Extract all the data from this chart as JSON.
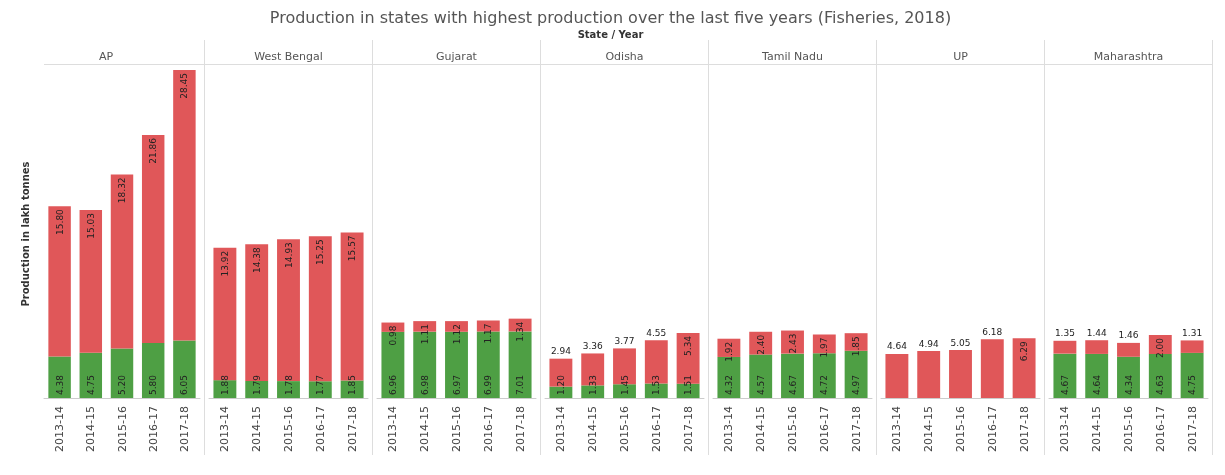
{
  "chart_data": [
    {
      "type": "bar",
      "title": "AP",
      "ylabel": "Production in lakh tonnes",
      "annotations": [
        "Production in states with highest production over the last five years (Fisheries, 2018)",
        "State / Year"
      ],
      "stacked": true,
      "tick_labels": "x",
      "categories": [
        "2013-14",
        "2014-15",
        "2015-16",
        "2016-17",
        "2017-18"
      ],
      "series": [
        {
          "color": "#4e9f44",
          "values": [
            4.38,
            4.75,
            5.2,
            5.8,
            6.05
          ],
          "value_labels": [
            "4.38",
            "4.75",
            "5.20",
            "5.80",
            "6.05"
          ]
        },
        {
          "color": "#e05759",
          "values": [
            15.8,
            15.03,
            18.32,
            21.86,
            28.45
          ],
          "value_labels": [
            "15.80",
            "15.03",
            "18.32",
            "21.86",
            "28.45"
          ]
        }
      ]
    },
    {
      "type": "bar",
      "title": "West Bengal",
      "stacked": true,
      "tick_labels": "x",
      "categories": [
        "2013-14",
        "2014-15",
        "2015-16",
        "2016-17",
        "2017-18"
      ],
      "series": [
        {
          "color": "#4e9f44",
          "values": [
            1.88,
            1.79,
            1.78,
            1.77,
            1.85
          ],
          "value_labels": [
            "1.88",
            "1.79",
            "1.78",
            "1.77",
            "1.85"
          ]
        },
        {
          "color": "#e05759",
          "values": [
            13.92,
            14.38,
            14.93,
            15.25,
            15.57
          ],
          "value_labels": [
            "13.92",
            "14.38",
            "14.93",
            "15.25",
            "15.57"
          ]
        }
      ]
    },
    {
      "type": "bar",
      "title": "Gujarat",
      "stacked": true,
      "tick_labels": "x",
      "categories": [
        "2013-14",
        "2014-15",
        "2015-16",
        "2016-17",
        "2017-18"
      ],
      "series": [
        {
          "color": "#4e9f44",
          "values": [
            6.96,
            6.98,
            6.97,
            6.99,
            7.01
          ],
          "value_labels": [
            "6.96",
            "6.98",
            "6.97",
            "6.99",
            "7.01"
          ]
        },
        {
          "color": "#e05759",
          "values": [
            0.98,
            1.11,
            1.12,
            1.17,
            1.34
          ],
          "value_labels": [
            "0.98",
            "1.11",
            "1.12",
            "1.17",
            "1.34"
          ]
        }
      ]
    },
    {
      "type": "bar",
      "title": "Odisha",
      "stacked": true,
      "tick_labels": "x",
      "categories": [
        "2013-14",
        "2014-15",
        "2015-16",
        "2016-17",
        "2017-18"
      ],
      "series": [
        {
          "color": "#4e9f44",
          "values": [
            1.2,
            1.33,
            1.45,
            1.53,
            1.51
          ],
          "value_labels": [
            "1.20",
            "1.33",
            "1.45",
            "1.53",
            "1.51"
          ]
        },
        {
          "color": "#e05759",
          "values": [
            2.94,
            3.36,
            3.77,
            4.55,
            5.34
          ],
          "value_labels": [
            "2.94",
            "3.36",
            "3.77",
            "4.55",
            "5.34"
          ]
        }
      ]
    },
    {
      "type": "bar",
      "title": "Tamil Nadu",
      "stacked": true,
      "tick_labels": "x",
      "categories": [
        "2013-14",
        "2014-15",
        "2015-16",
        "2016-17",
        "2017-18"
      ],
      "series": [
        {
          "color": "#4e9f44",
          "values": [
            4.32,
            4.57,
            4.67,
            4.72,
            4.97
          ],
          "value_labels": [
            "4.32",
            "4.57",
            "4.67",
            "4.72",
            "4.97"
          ]
        },
        {
          "color": "#e05759",
          "values": [
            1.92,
            2.4,
            2.43,
            1.97,
            1.85
          ],
          "value_labels": [
            "1.92",
            "2.40",
            "2.43",
            "1.97",
            "1.85"
          ]
        }
      ]
    },
    {
      "type": "bar",
      "title": "UP",
      "stacked": true,
      "tick_labels": "x",
      "categories": [
        "2013-14",
        "2014-15",
        "2015-16",
        "2016-17",
        "2017-18"
      ],
      "series": [
        {
          "color": "#4e9f44",
          "values": [
            null,
            null,
            null,
            null,
            null
          ],
          "value_labels": [
            null,
            null,
            null,
            null,
            null
          ]
        },
        {
          "color": "#e05759",
          "values": [
            4.64,
            4.94,
            5.05,
            6.18,
            6.29
          ],
          "value_labels": [
            "4.64",
            "4.94",
            "5.05",
            "6.18",
            "6.29"
          ]
        }
      ]
    },
    {
      "type": "bar",
      "title": "Maharashtra",
      "stacked": true,
      "tick_labels": "x",
      "categories": [
        "2013-14",
        "2014-15",
        "2015-16",
        "2016-17",
        "2017-18"
      ],
      "series": [
        {
          "color": "#4e9f44",
          "values": [
            4.67,
            4.64,
            4.34,
            4.63,
            4.75
          ],
          "value_labels": [
            "4.67",
            "4.64",
            "4.34",
            "4.63",
            "4.75"
          ]
        },
        {
          "color": "#e05759",
          "values": [
            1.35,
            1.44,
            1.46,
            2.0,
            1.31
          ],
          "value_labels": [
            "1.35",
            "1.44",
            "1.46",
            "2.00",
            "1.31"
          ]
        }
      ]
    }
  ]
}
